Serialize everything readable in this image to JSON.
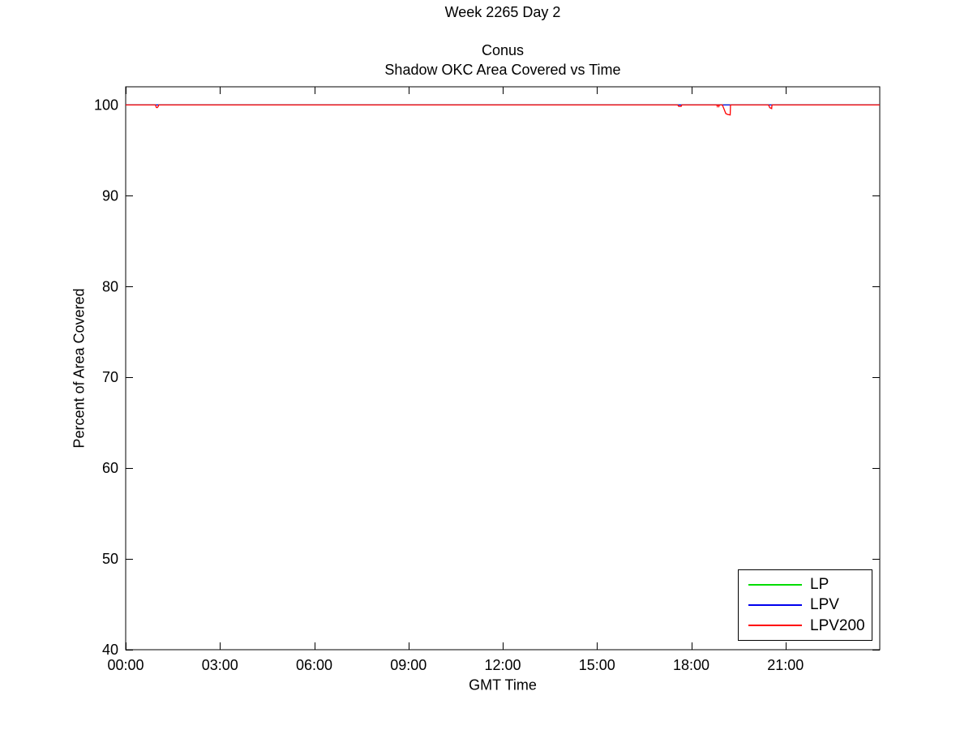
{
  "figure": {
    "title": "Week 2265 Day 2",
    "subtitle_line1": "Conus",
    "subtitle_line2": "Shadow OKC Area Covered vs Time"
  },
  "chart_data": {
    "type": "line",
    "title": "Week 2265 Day 2",
    "subtitle": "Conus / Shadow OKC Area Covered vs Time",
    "xlabel": "GMT Time",
    "ylabel": "Percent of Area Covered",
    "xlim": [
      0,
      24
    ],
    "ylim": [
      40,
      102
    ],
    "xticks": [
      0,
      3,
      6,
      9,
      12,
      15,
      18,
      21
    ],
    "xtick_labels": [
      "00:00",
      "03:00",
      "06:00",
      "09:00",
      "12:00",
      "15:00",
      "18:00",
      "21:00"
    ],
    "yticks": [
      40,
      50,
      60,
      70,
      80,
      90,
      100
    ],
    "ytick_labels": [
      "40",
      "50",
      "60",
      "70",
      "80",
      "90",
      "100"
    ],
    "grid": false,
    "box": true,
    "tick_direction": "in",
    "axis_color": "#000000",
    "legend_position": "bottom-right",
    "series": [
      {
        "name": "LP",
        "color": "#00dd00",
        "points": [
          [
            0,
            100
          ],
          [
            24,
            100
          ]
        ]
      },
      {
        "name": "LPV",
        "color": "#0000ee",
        "points": [
          [
            0,
            100
          ],
          [
            24,
            100
          ]
        ]
      },
      {
        "name": "LPV200",
        "color": "#ff0000",
        "points": [
          [
            0,
            100
          ],
          [
            0.95,
            100
          ],
          [
            0.97,
            99.75
          ],
          [
            1.0,
            99.7
          ],
          [
            1.03,
            99.8
          ],
          [
            1.05,
            100
          ],
          [
            17.57,
            100
          ],
          [
            17.6,
            99.85
          ],
          [
            17.68,
            99.85
          ],
          [
            17.7,
            100
          ],
          [
            18.81,
            100
          ],
          [
            18.83,
            99.85
          ],
          [
            18.84,
            100
          ],
          [
            18.87,
            100
          ],
          [
            18.88,
            99.85
          ],
          [
            18.9,
            100
          ],
          [
            18.99,
            100
          ],
          [
            19.05,
            99.5
          ],
          [
            19.1,
            99.05
          ],
          [
            19.16,
            98.95
          ],
          [
            19.24,
            98.9
          ],
          [
            19.25,
            100
          ],
          [
            20.46,
            100
          ],
          [
            20.5,
            99.7
          ],
          [
            20.56,
            99.6
          ],
          [
            20.57,
            100
          ],
          [
            24,
            100
          ]
        ]
      }
    ]
  }
}
